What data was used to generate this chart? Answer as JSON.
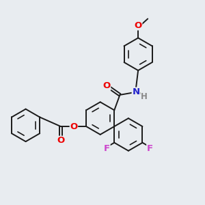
{
  "background_color": "#e8ecf0",
  "bond_color": "#1a1a1a",
  "bond_width": 1.4,
  "atom_colors": {
    "O": "#ee0000",
    "N": "#2222cc",
    "F": "#cc44cc",
    "H": "#888888",
    "C": "#1a1a1a"
  },
  "font_size_atom": 9.5,
  "font_size_h": 8.5
}
